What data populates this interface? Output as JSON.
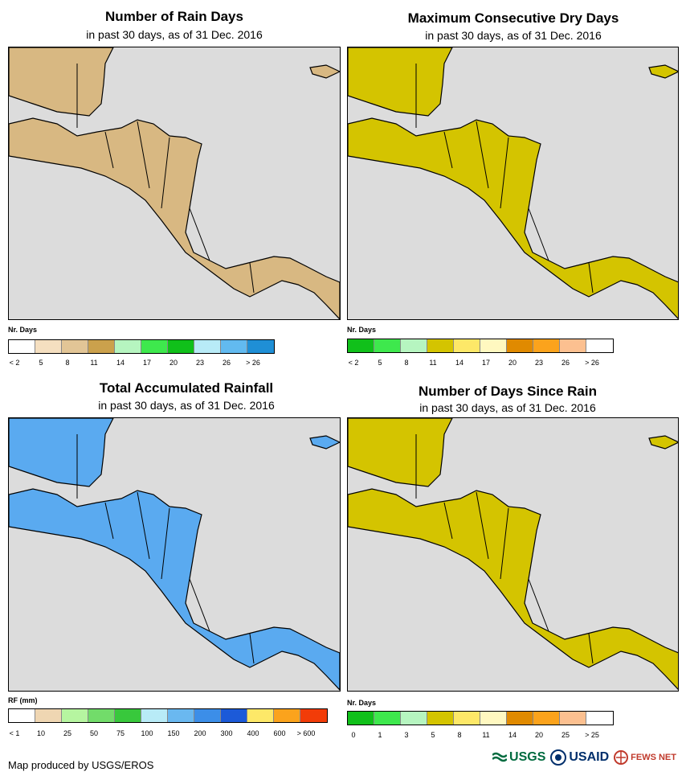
{
  "panels": {
    "rain_days": {
      "title": "Number of Rain Days",
      "subtitle": "in past 30 days, as of 31 Dec. 2016",
      "legend_title": "Nr. Days",
      "legend_ticks": [
        "< 2",
        "5",
        "8",
        "11",
        "14",
        "17",
        "20",
        "23",
        "26",
        "> 26"
      ],
      "legend_colors": [
        "#ffffff",
        "#f5dfc0",
        "#e2c596",
        "#cba14c",
        "#b6f5c0",
        "#3ee84d",
        "#10c01a",
        "#b8ebf7",
        "#62baf0",
        "#1f8fd6"
      ]
    },
    "dry_days": {
      "title": "Maximum Consecutive Dry Days",
      "subtitle": "in past 30 days, as of 31 Dec. 2016",
      "legend_title": "Nr. Days",
      "legend_ticks": [
        "< 2",
        "5",
        "8",
        "11",
        "14",
        "17",
        "20",
        "23",
        "26",
        "> 26"
      ],
      "legend_colors": [
        "#10c01a",
        "#3ee84d",
        "#b6f5c0",
        "#d4c400",
        "#fde868",
        "#fff8c0",
        "#e08a00",
        "#fba31c",
        "#fcc090",
        "#ffffff"
      ]
    },
    "rainfall": {
      "title": "Total Accumulated Rainfall",
      "subtitle": "in past 30 days, as of 31 Dec. 2016",
      "legend_title": "RF (mm)",
      "legend_ticks": [
        "< 1",
        "10",
        "25",
        "50",
        "75",
        "100",
        "150",
        "200",
        "300",
        "400",
        "600",
        "> 600"
      ],
      "legend_colors": [
        "#ffffff",
        "#efd6b2",
        "#b6f5a0",
        "#72dc6a",
        "#38c83c",
        "#b8ebf7",
        "#6ab8f0",
        "#3c8ee8",
        "#1c5ad8",
        "#fde868",
        "#fba31c",
        "#f23c08"
      ]
    },
    "days_since": {
      "title": "Number of Days Since Rain",
      "subtitle": "in past 30 days, as of 31 Dec. 2016",
      "legend_title": "Nr. Days",
      "legend_ticks": [
        "0",
        "1",
        "3",
        "5",
        "8",
        "11",
        "14",
        "20",
        "25",
        "> 25"
      ],
      "legend_colors": [
        "#10c01a",
        "#3ee84d",
        "#b6f5c0",
        "#d4c400",
        "#fde868",
        "#fff8c0",
        "#e08a00",
        "#fba31c",
        "#fcc090",
        "#ffffff"
      ]
    }
  },
  "map": {
    "land_color": "#e6c8a0",
    "ocean_color": "#dcdcdc",
    "border_color": "#000000"
  },
  "footer": {
    "credit": "Map produced by USGS/EROS"
  },
  "logos": {
    "usgs": "USGS",
    "usaid": "USAID",
    "fewsnet": "FEWS NET"
  }
}
